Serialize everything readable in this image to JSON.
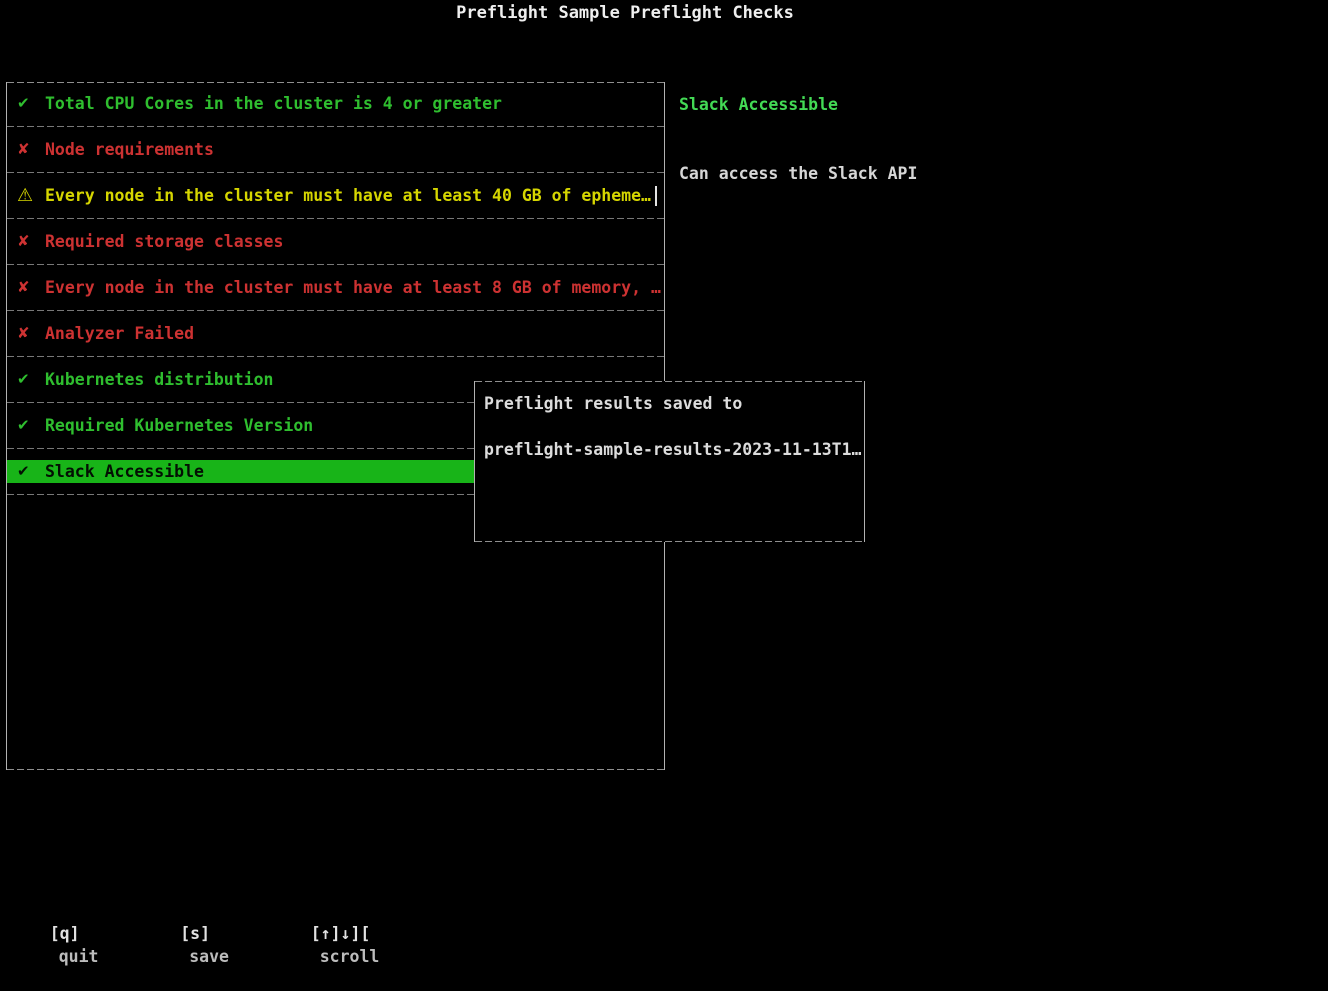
{
  "app": {
    "title": "Preflight Sample Preflight Checks"
  },
  "icons": {
    "check": "✔",
    "cross": "✘",
    "warn": "⚠"
  },
  "checks": {
    "items": [
      {
        "icon": "check",
        "status": "pass",
        "label": "Total CPU Cores in the cluster is 4 or greater",
        "selected": false,
        "cursor": false
      },
      {
        "icon": "cross",
        "status": "fail",
        "label": "Node requirements",
        "selected": false,
        "cursor": false
      },
      {
        "icon": "warn",
        "status": "warn",
        "label": "Every node in the cluster must have at least 40 GB of epheme…",
        "selected": false,
        "cursor": true
      },
      {
        "icon": "cross",
        "status": "fail",
        "label": "Required storage classes",
        "selected": false,
        "cursor": false
      },
      {
        "icon": "cross",
        "status": "fail",
        "label": "Every node in the cluster must have at least 8 GB of memory, …",
        "selected": false,
        "cursor": false
      },
      {
        "icon": "cross",
        "status": "fail",
        "label": "Analyzer Failed",
        "selected": false,
        "cursor": false
      },
      {
        "icon": "check",
        "status": "pass",
        "label": "Kubernetes distribution",
        "selected": false,
        "cursor": false
      },
      {
        "icon": "check",
        "status": "pass",
        "label": "Required Kubernetes Version",
        "selected": false,
        "cursor": false
      },
      {
        "icon": "check",
        "status": "pass",
        "label": "Slack Accessible",
        "selected": true,
        "cursor": false
      }
    ]
  },
  "detail": {
    "title": "Slack Accessible",
    "message": "Can access the Slack API"
  },
  "modal": {
    "line1": "Preflight results saved to",
    "line2": "preflight-sample-results-2023-11-13T1…"
  },
  "statusbar": {
    "items": [
      {
        "key": "[q]",
        "label": "quit"
      },
      {
        "key": "[s]",
        "label": "save"
      },
      {
        "key": "[↑]↓][",
        "label": "scroll"
      }
    ]
  },
  "colors": {
    "pass": "#2fbe2f",
    "fail": "#cd3232",
    "warn": "#d6d600",
    "selected_bg": "#18b418",
    "selected_fg": "#031003",
    "detail_title": "#43da55",
    "text": "#d6d6d6",
    "border_v": "#b2b2b2",
    "border_h": "#8f8f8f",
    "separator": "#787878"
  }
}
